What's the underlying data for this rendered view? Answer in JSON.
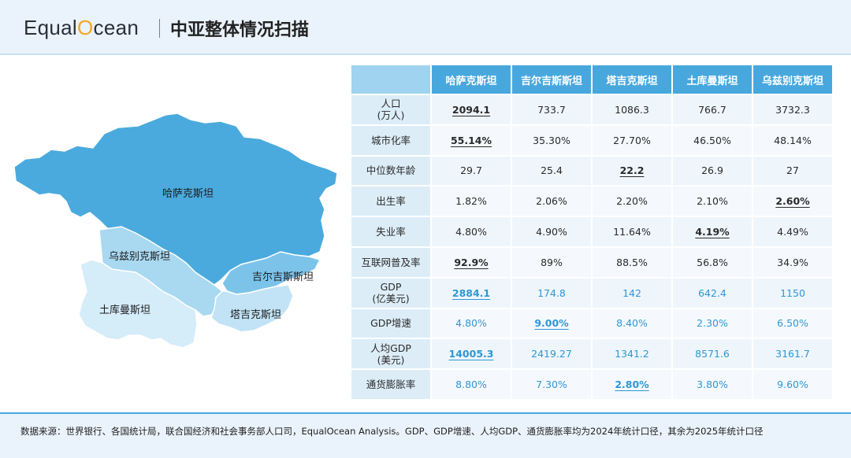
{
  "header": {
    "logo_text_1": "Equal",
    "logo_text_2": "O",
    "logo_text_3": "cean",
    "title": "中亚整体情况扫描"
  },
  "map": {
    "kazakhstan": "哈萨克斯坦",
    "uzbekistan": "乌兹别克斯坦",
    "kyrgyzstan": "吉尔吉斯斯坦",
    "turkmenistan": "土库曼斯坦",
    "tajikistan": "塔吉克斯坦",
    "colors": {
      "kazakhstan": "#4aaadd",
      "uzbekistan": "#a9d8f1",
      "kyrgyzstan": "#7cc3ea",
      "turkmenistan": "#d5ecf9",
      "tajikistan": "#c2e3f6"
    }
  },
  "table": {
    "columns": [
      "哈萨克斯坦",
      "吉尔吉斯斯坦",
      "塔吉克斯坦",
      "土库曼斯坦",
      "乌兹别克斯坦"
    ],
    "rows": [
      {
        "label": "人口",
        "label2": "(万人)",
        "values": [
          "2094.1",
          "733.7",
          "1086.3",
          "766.7",
          "3732.3"
        ],
        "hl": 0,
        "blue": false
      },
      {
        "label": "城市化率",
        "label2": "",
        "values": [
          "55.14%",
          "35.30%",
          "27.70%",
          "46.50%",
          "48.14%"
        ],
        "hl": 0,
        "blue": false
      },
      {
        "label": "中位数年龄",
        "label2": "",
        "values": [
          "29.7",
          "25.4",
          "22.2",
          "26.9",
          "27"
        ],
        "hl": 2,
        "blue": false
      },
      {
        "label": "出生率",
        "label2": "",
        "values": [
          "1.82%",
          "2.06%",
          "2.20%",
          "2.10%",
          "2.60%"
        ],
        "hl": 4,
        "blue": false
      },
      {
        "label": "失业率",
        "label2": "",
        "values": [
          "4.80%",
          "4.90%",
          "11.64%",
          "4.19%",
          "4.49%"
        ],
        "hl": 3,
        "blue": false
      },
      {
        "label": "互联网普及率",
        "label2": "",
        "values": [
          "92.9%",
          "89%",
          "88.5%",
          "56.8%",
          "34.9%"
        ],
        "hl": 0,
        "blue": false
      },
      {
        "label": "GDP",
        "label2": "(亿美元)",
        "values": [
          "2884.1",
          "174.8",
          "142",
          "642.4",
          "1150"
        ],
        "hl": 0,
        "blue": true
      },
      {
        "label": "GDP增速",
        "label2": "",
        "values": [
          "4.80%",
          "9.00%",
          "8.40%",
          "2.30%",
          "6.50%"
        ],
        "hl": 1,
        "blue": true
      },
      {
        "label": "人均GDP",
        "label2": "(美元)",
        "values": [
          "14005.3",
          "2419.27",
          "1341.2",
          "8571.6",
          "3161.7"
        ],
        "hl": 0,
        "blue": true
      },
      {
        "label": "通货膨胀率",
        "label2": "",
        "values": [
          "8.80%",
          "7.30%",
          "2.80%",
          "3.80%",
          "9.60%"
        ],
        "hl": 2,
        "blue": true
      }
    ]
  },
  "footer": {
    "source": "数据来源：世界银行、各国统计局，联合国经济和社会事务部人口司，EqualOcean Analysis。GDP、GDP增速、人均GDP、通货膨胀率均为2024年统计口径，其余为2025年统计口径"
  }
}
